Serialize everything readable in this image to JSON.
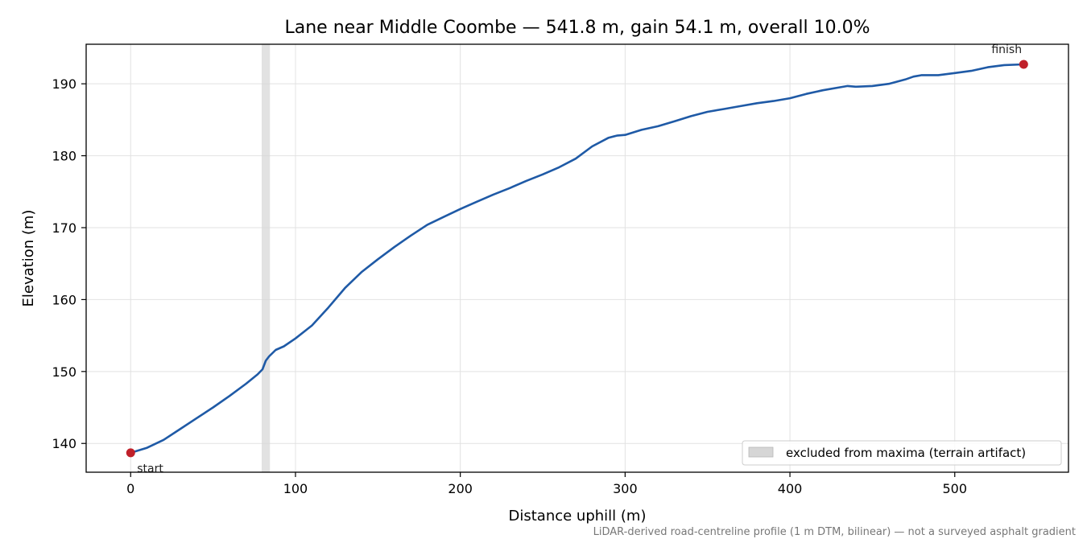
{
  "chart_data": {
    "type": "line",
    "title": "Lane near Middle Coombe — 541.8 m, gain 54.1 m, overall 10.0%",
    "xlabel": "Distance uphill (m)",
    "ylabel": "Elevation (m)",
    "xlim": [
      -27,
      569
    ],
    "ylim": [
      136.0,
      195.5
    ],
    "x_ticks": [
      0,
      100,
      200,
      300,
      400,
      500
    ],
    "y_ticks": [
      140,
      150,
      160,
      170,
      180,
      190
    ],
    "grid": true,
    "legend_position": "lower-right",
    "series": [
      {
        "color": "#1f5aa6",
        "points": [
          [
            0,
            138.7
          ],
          [
            10,
            139.4
          ],
          [
            20,
            140.5
          ],
          [
            30,
            142.0
          ],
          [
            40,
            143.5
          ],
          [
            50,
            145.0
          ],
          [
            60,
            146.6
          ],
          [
            70,
            148.3
          ],
          [
            77,
            149.6
          ],
          [
            80,
            150.3
          ],
          [
            82,
            151.5
          ],
          [
            84,
            152.1
          ],
          [
            88,
            153.0
          ],
          [
            93,
            153.5
          ],
          [
            100,
            154.6
          ],
          [
            110,
            156.4
          ],
          [
            120,
            158.9
          ],
          [
            130,
            161.6
          ],
          [
            140,
            163.8
          ],
          [
            150,
            165.6
          ],
          [
            160,
            167.3
          ],
          [
            170,
            168.9
          ],
          [
            180,
            170.4
          ],
          [
            190,
            171.5
          ],
          [
            200,
            172.6
          ],
          [
            210,
            173.6
          ],
          [
            220,
            174.6
          ],
          [
            230,
            175.5
          ],
          [
            240,
            176.5
          ],
          [
            250,
            177.4
          ],
          [
            260,
            178.4
          ],
          [
            270,
            179.6
          ],
          [
            280,
            181.3
          ],
          [
            290,
            182.5
          ],
          [
            295,
            182.8
          ],
          [
            300,
            182.9
          ],
          [
            310,
            183.6
          ],
          [
            320,
            184.1
          ],
          [
            330,
            184.8
          ],
          [
            340,
            185.5
          ],
          [
            350,
            186.1
          ],
          [
            360,
            186.5
          ],
          [
            370,
            186.9
          ],
          [
            380,
            187.3
          ],
          [
            390,
            187.6
          ],
          [
            400,
            188.0
          ],
          [
            410,
            188.6
          ],
          [
            420,
            189.1
          ],
          [
            430,
            189.5
          ],
          [
            435,
            189.7
          ],
          [
            440,
            189.6
          ],
          [
            450,
            189.7
          ],
          [
            460,
            190.0
          ],
          [
            470,
            190.6
          ],
          [
            475,
            191.0
          ],
          [
            480,
            191.2
          ],
          [
            490,
            191.2
          ],
          [
            500,
            191.5
          ],
          [
            510,
            191.8
          ],
          [
            520,
            192.3
          ],
          [
            530,
            192.6
          ],
          [
            541.8,
            192.7
          ]
        ]
      }
    ],
    "excluded_band": {
      "x": [
        79.5,
        84.5
      ],
      "legend_label": "excluded from maxima (terrain artifact)"
    },
    "markers": [
      {
        "label": "start",
        "x": 0,
        "y": 138.7,
        "color": "#c0202a"
      },
      {
        "label": "finish",
        "x": 541.8,
        "y": 192.7,
        "color": "#c0202a"
      }
    ],
    "footnote": "LiDAR-derived road-centreline profile (1 m DTM, bilinear) — not a surveyed asphalt gradient"
  }
}
